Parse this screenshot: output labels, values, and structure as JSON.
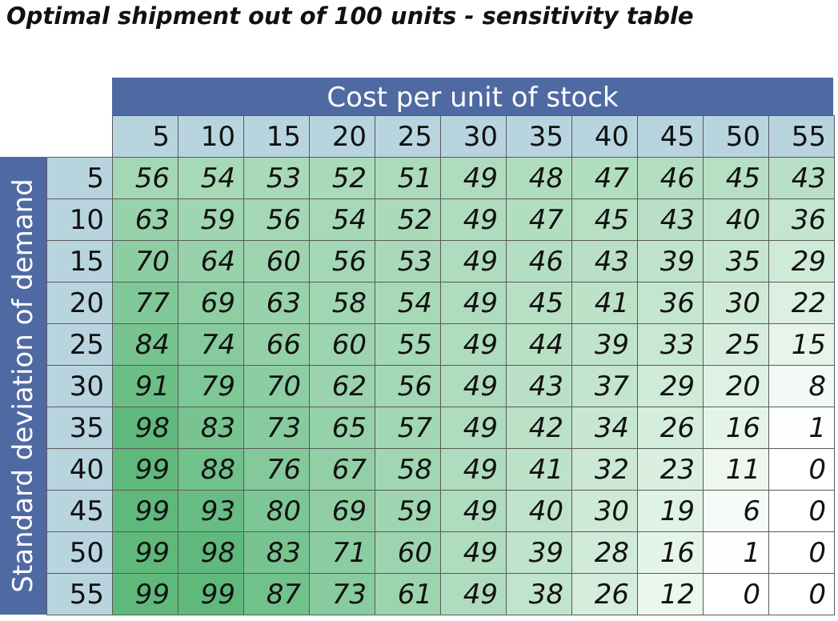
{
  "chart_data": {
    "type": "table",
    "title": "Optimal shipment out of 100 units - sensitivity table",
    "column_axis_label": "Cost per unit of stock",
    "row_axis_label": "Standard deviation of demand",
    "columns": [
      "5",
      "10",
      "15",
      "20",
      "25",
      "30",
      "35",
      "40",
      "45",
      "50",
      "55"
    ],
    "rows": [
      "5",
      "10",
      "15",
      "20",
      "25",
      "30",
      "35",
      "40",
      "45",
      "50",
      "55"
    ],
    "values": [
      [
        56,
        54,
        53,
        52,
        51,
        49,
        48,
        47,
        46,
        45,
        43
      ],
      [
        63,
        59,
        56,
        54,
        52,
        49,
        47,
        45,
        43,
        40,
        36
      ],
      [
        70,
        64,
        60,
        56,
        53,
        49,
        46,
        43,
        39,
        35,
        29
      ],
      [
        77,
        69,
        63,
        58,
        54,
        49,
        45,
        41,
        36,
        30,
        22
      ],
      [
        84,
        74,
        66,
        60,
        55,
        49,
        44,
        39,
        33,
        25,
        15
      ],
      [
        91,
        79,
        70,
        62,
        56,
        49,
        43,
        37,
        29,
        20,
        8
      ],
      [
        98,
        83,
        73,
        65,
        57,
        49,
        42,
        34,
        26,
        16,
        1
      ],
      [
        99,
        88,
        76,
        67,
        58,
        49,
        41,
        32,
        23,
        11,
        0
      ],
      [
        99,
        93,
        80,
        69,
        59,
        49,
        40,
        30,
        19,
        6,
        0
      ],
      [
        99,
        98,
        83,
        71,
        60,
        49,
        39,
        28,
        16,
        1,
        0
      ],
      [
        99,
        99,
        87,
        73,
        61,
        49,
        38,
        26,
        12,
        0,
        0
      ]
    ],
    "color_scale": {
      "low": "#ffffff",
      "high": "#5cb87a"
    }
  }
}
